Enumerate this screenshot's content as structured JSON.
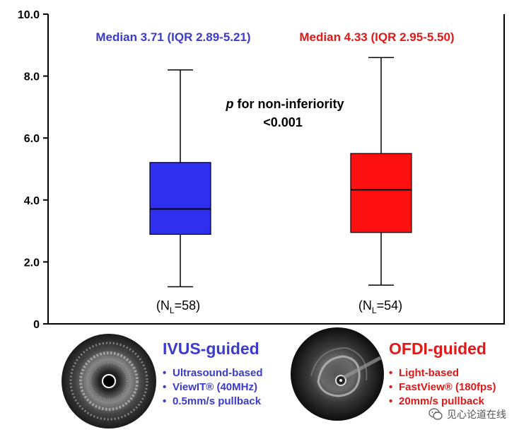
{
  "colors": {
    "ivus": "#3b3bcc",
    "ivus_box": "#2f2ff0",
    "ofdi": "#e01818",
    "ofdi_box": "#ff1010"
  },
  "chart_data": {
    "type": "box",
    "ylim": [
      0,
      10
    ],
    "yticks": [
      "0",
      "2.0",
      "4.0",
      "6.0",
      "8.0",
      "10.0"
    ],
    "ytick_values": [
      0,
      2,
      4,
      6,
      8,
      10
    ],
    "grid": false,
    "groups": [
      {
        "name": "IVUS-guided",
        "min": 1.2,
        "q1": 2.89,
        "median": 3.71,
        "q3": 5.21,
        "max": 8.2,
        "n_label": "(N",
        "n_sub": "L",
        "n_value": "=58)",
        "stat_label": "Median 3.71 (IQR 2.89-5.21)"
      },
      {
        "name": "OFDI-guided",
        "min": 1.25,
        "q1": 2.95,
        "median": 4.33,
        "q3": 5.5,
        "max": 8.6,
        "n_label": "(N",
        "n_sub": "L",
        "n_value": "=54)",
        "stat_label": "Median 4.33 (IQR 2.95-5.50)"
      }
    ],
    "annotation": {
      "p_symbol": "p",
      "line1": " for non-inferiority",
      "line2": "<0.001"
    }
  },
  "panels": {
    "ivus": {
      "title": "IVUS-guided",
      "bullets": [
        "Ultrasound-based",
        "ViewIT® (40MHz)",
        "0.5mm/s pullback"
      ]
    },
    "ofdi": {
      "title": "OFDI-guided",
      "bullets": [
        "Light-based",
        "FastView® (180fps)",
        "20mm/s pullback"
      ]
    }
  },
  "watermark": {
    "text": "见心论道在线"
  }
}
